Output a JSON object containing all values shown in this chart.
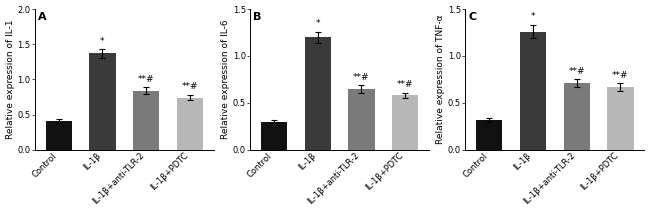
{
  "panels": [
    {
      "label": "A",
      "ylabel": "Relative expression of IL-1",
      "ylim": [
        0,
        2.0
      ],
      "yticks": [
        0.0,
        0.5,
        1.0,
        1.5,
        2.0
      ],
      "categories": [
        "Control",
        "IL-1β",
        "IL-1β+anti-TLR-2",
        "IL-1β+PDTC"
      ],
      "values": [
        0.41,
        1.37,
        0.84,
        0.74
      ],
      "errors": [
        0.03,
        0.06,
        0.05,
        0.04
      ],
      "bar_colors": [
        "#111111",
        "#3a3a3a",
        "#7a7a7a",
        "#b8b8b8"
      ],
      "significance": [
        "",
        "*",
        "**#",
        "**#"
      ]
    },
    {
      "label": "B",
      "ylabel": "Relative expression of IL-6",
      "ylim": [
        0,
        1.5
      ],
      "yticks": [
        0.0,
        0.5,
        1.0,
        1.5
      ],
      "categories": [
        "Control",
        "IL-1β",
        "IL-1β+anti-TLR-2",
        "IL-1β+PDTC"
      ],
      "values": [
        0.3,
        1.2,
        0.65,
        0.58
      ],
      "errors": [
        0.02,
        0.06,
        0.04,
        0.03
      ],
      "bar_colors": [
        "#111111",
        "#3a3a3a",
        "#7a7a7a",
        "#b8b8b8"
      ],
      "significance": [
        "",
        "*",
        "**#",
        "**#"
      ]
    },
    {
      "label": "C",
      "ylabel": "Relative expression of TNF-α",
      "ylim": [
        0,
        1.5
      ],
      "yticks": [
        0.0,
        0.5,
        1.0,
        1.5
      ],
      "categories": [
        "Control",
        "IL-1β",
        "IL-1β+anti-TLR-2",
        "IL-1β+PDTC"
      ],
      "values": [
        0.32,
        1.26,
        0.71,
        0.67
      ],
      "errors": [
        0.02,
        0.07,
        0.04,
        0.04
      ],
      "bar_colors": [
        "#111111",
        "#3a3a3a",
        "#7a7a7a",
        "#b8b8b8"
      ],
      "significance": [
        "",
        "*",
        "**#",
        "**#"
      ]
    }
  ],
  "tick_fontsize": 6.0,
  "label_fontsize": 6.5,
  "sig_fontsize": 6.5,
  "panel_label_fontsize": 8,
  "bar_width": 0.6,
  "background_color": "#ffffff",
  "figure_width": 6.5,
  "figure_height": 2.12
}
